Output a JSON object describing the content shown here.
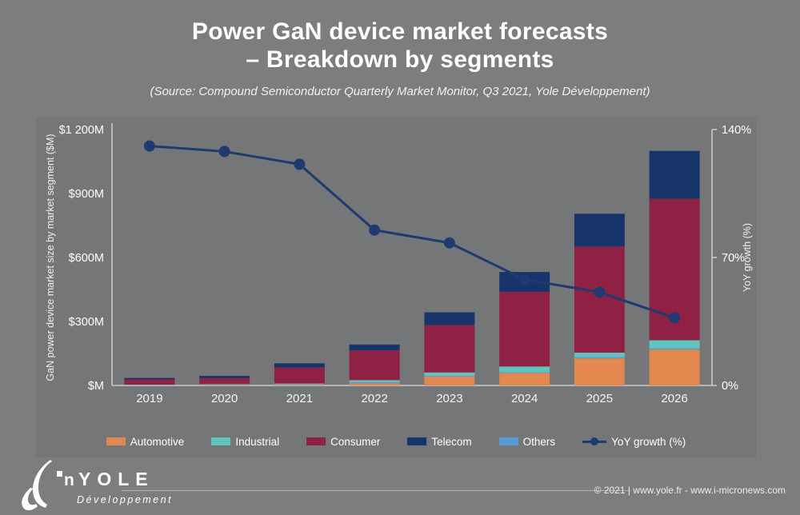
{
  "slide": {
    "title_line1": "Power GaN device market forecasts",
    "title_line2": "– Breakdown by segments",
    "subtitle": "(Source: Compound Semiconductor Quarterly Market Monitor, Q3 2021, Yole Développement)"
  },
  "colors": {
    "background": "#7b7d7f",
    "panel": "#747678",
    "axis": "#c9cacb",
    "text": "#ffffff",
    "line": "#1e3a6e"
  },
  "chart_data": {
    "type": "bar",
    "subtype": "stacked-bars-with-line-overlay",
    "title": "Power GaN device market forecasts – Breakdown by segments",
    "categories": [
      "2019",
      "2020",
      "2021",
      "2022",
      "2023",
      "2024",
      "2025",
      "2026"
    ],
    "unit": "$M",
    "stack_order_bottom_to_top": [
      "Automotive",
      "Others",
      "Industrial",
      "Consumer",
      "Telecom"
    ],
    "series": [
      {
        "name": "Automotive",
        "color": "#e2874d",
        "values": [
          1,
          2,
          3,
          10,
          42,
          58,
          127,
          168
        ]
      },
      {
        "name": "Others",
        "color": "#5b9bd5",
        "values": [
          1,
          1,
          2,
          6,
          3,
          4,
          5,
          6
        ]
      },
      {
        "name": "Industrial",
        "color": "#63c3bd",
        "values": [
          2,
          3,
          4,
          9,
          16,
          27,
          22,
          38
        ]
      },
      {
        "name": "Consumer",
        "color": "#8f2145",
        "values": [
          24,
          28,
          76,
          139,
          222,
          350,
          497,
          663
        ]
      },
      {
        "name": "Telecom",
        "color": "#17356b",
        "values": [
          7,
          11,
          19,
          28,
          60,
          93,
          154,
          225
        ]
      }
    ],
    "totals_estimated": [
      35,
      45,
      104,
      192,
      343,
      532,
      805,
      1100
    ],
    "line_series": {
      "name": "YoY growth (%)",
      "color": "#1e3a6e",
      "values": [
        131,
        128,
        121,
        85,
        78,
        58,
        51,
        37
      ]
    },
    "left_axis": {
      "label": "GaN power device market size by market segment ($M)",
      "max": 1200,
      "ticks": [
        {
          "value": 0,
          "label": "$M"
        },
        {
          "value": 300,
          "label": "$300M"
        },
        {
          "value": 600,
          "label": "$600M"
        },
        {
          "value": 900,
          "label": "$900M"
        },
        {
          "value": 1200,
          "label": "$1 200M"
        }
      ]
    },
    "right_axis": {
      "label": "YoY growth (%)",
      "max": 140,
      "ticks": [
        {
          "value": 0,
          "label": "0%"
        },
        {
          "value": 70,
          "label": "70%"
        },
        {
          "value": 140,
          "label": "140%"
        }
      ]
    },
    "legend": [
      {
        "label": "Automotive",
        "color": "#e2874d",
        "kind": "swatch"
      },
      {
        "label": "Industrial",
        "color": "#63c3bd",
        "kind": "swatch"
      },
      {
        "label": "Consumer",
        "color": "#8f2145",
        "kind": "swatch"
      },
      {
        "label": "Telecom",
        "color": "#17356b",
        "kind": "swatch"
      },
      {
        "label": "Others",
        "color": "#5b9bd5",
        "kind": "swatch"
      },
      {
        "label": "YoY growth (%)",
        "color": "#1e3a6e",
        "kind": "line"
      }
    ],
    "grid": false,
    "legend_position": "bottom"
  },
  "footer": {
    "logo_name": "YOLE",
    "logo_subtitle": "Développement",
    "copyright": "© 2021 | www.yole.fr - www.i-micronews.com"
  }
}
